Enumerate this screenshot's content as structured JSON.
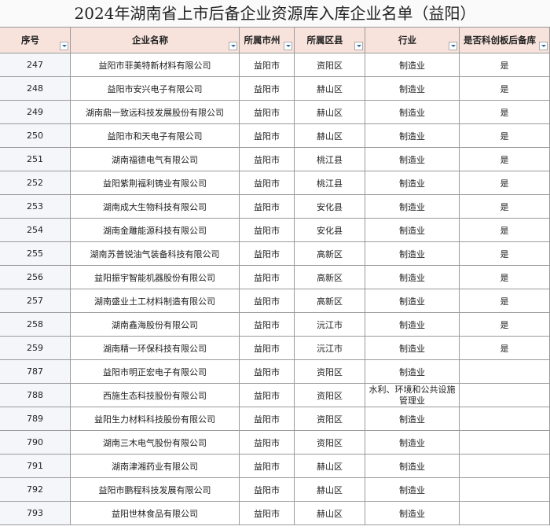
{
  "header": {
    "title": "2024年湖南省上市后备企业资源库入库企业名单（益阳）"
  },
  "table": {
    "columns": [
      "序号",
      "企业名称",
      "所属市州",
      "所属区县",
      "行业",
      "是否科创板后备库"
    ],
    "rows": [
      [
        "247",
        "益阳市菲美特新材料有限公司",
        "益阳市",
        "资阳区",
        "制造业",
        "是"
      ],
      [
        "248",
        "益阳市安兴电子有限公司",
        "益阳市",
        "赫山区",
        "制造业",
        "是"
      ],
      [
        "249",
        "湖南鼎一致远科技发展股份有限公司",
        "益阳市",
        "赫山区",
        "制造业",
        "是"
      ],
      [
        "250",
        "益阳市和天电子有限公司",
        "益阳市",
        "赫山区",
        "制造业",
        "是"
      ],
      [
        "251",
        "湖南福德电气有限公司",
        "益阳市",
        "桃江县",
        "制造业",
        "是"
      ],
      [
        "252",
        "益阳紫荆福利铸业有限公司",
        "益阳市",
        "桃江县",
        "制造业",
        "是"
      ],
      [
        "253",
        "湖南成大生物科技有限公司",
        "益阳市",
        "安化县",
        "制造业",
        "是"
      ],
      [
        "254",
        "湖南金雕能源科技有限公司",
        "益阳市",
        "安化县",
        "制造业",
        "是"
      ],
      [
        "255",
        "湖南苏普锐油气装备科技有限公司",
        "益阳市",
        "高新区",
        "制造业",
        "是"
      ],
      [
        "256",
        "益阳振宇智能机器股份有限公司",
        "益阳市",
        "高新区",
        "制造业",
        "是"
      ],
      [
        "257",
        "湖南盛业土工材料制造有限公司",
        "益阳市",
        "高新区",
        "制造业",
        "是"
      ],
      [
        "258",
        "湖南鑫海股份有限公司",
        "益阳市",
        "沅江市",
        "制造业",
        "是"
      ],
      [
        "259",
        "湖南精一环保科技有限公司",
        "益阳市",
        "沅江市",
        "制造业",
        "是"
      ],
      [
        "787",
        "益阳市明正宏电子有限公司",
        "益阳市",
        "资阳区",
        "制造业"
      ],
      [
        "788",
        "西施生态科技股份有限公司",
        "益阳市",
        "资阳区",
        "水利、环境和公共设施管理业"
      ],
      [
        "789",
        "益阳生力材料科技股份有限公司",
        "益阳市",
        "资阳区",
        "制造业"
      ],
      [
        "790",
        "湖南三木电气股份有限公司",
        "益阳市",
        "资阳区",
        "制造业"
      ],
      [
        "791",
        "湖南津湘药业有限公司",
        "益阳市",
        "赫山区",
        "制造业"
      ],
      [
        "792",
        "益阳市鹏程科技发展有限公司",
        "益阳市",
        "赫山区",
        "制造业"
      ],
      [
        "793",
        "益阳世林食品有限公司",
        "益阳市",
        "赫山区",
        "制造业"
      ]
    ]
  }
}
